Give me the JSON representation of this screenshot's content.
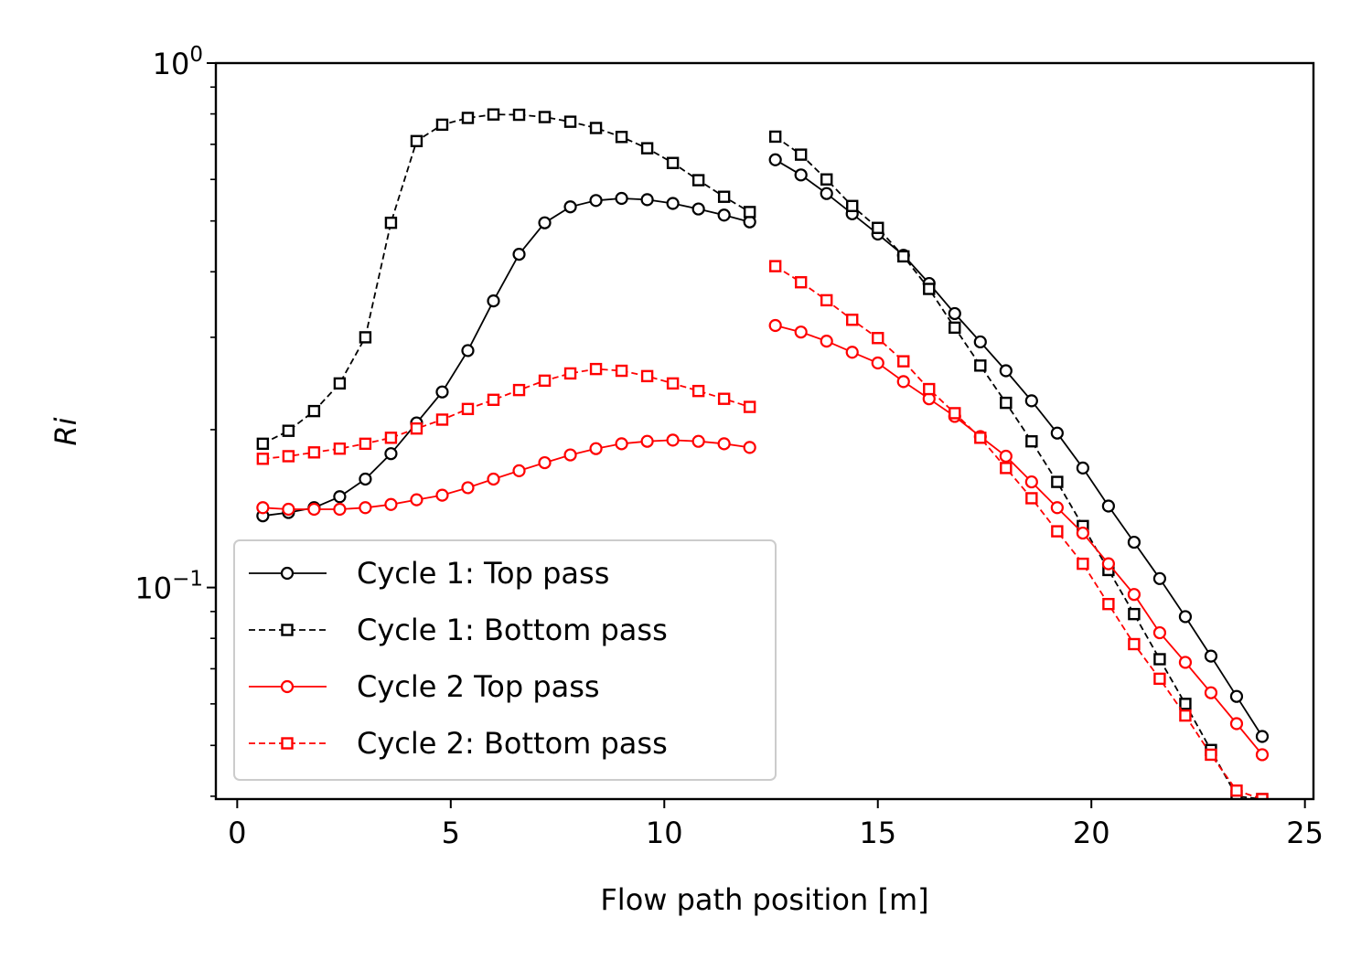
{
  "chart_data": {
    "type": "line",
    "title": "",
    "xlabel": "Flow path position [m]",
    "ylabel": "Ri",
    "yscale": "log",
    "xlim": [
      -0.5,
      25.2
    ],
    "ylim": [
      0.0395,
      1.0
    ],
    "xticks": [
      0,
      5,
      10,
      15,
      20,
      25
    ],
    "xtick_labels": [
      "0",
      "5",
      "10",
      "15",
      "20",
      "25"
    ],
    "yticks": [
      0.1,
      1.0
    ],
    "ytick_labels": [
      {
        "base": "10",
        "exp": "−1"
      },
      {
        "base": "10",
        "exp": "0"
      }
    ],
    "grid": false,
    "legend": {
      "position": "lower-left"
    },
    "segments": [
      {
        "name": "first",
        "x": [
          0.6,
          1.2,
          1.8,
          2.4,
          3.0,
          3.6,
          4.2,
          4.8,
          5.4,
          6.0,
          6.6,
          7.2,
          7.8,
          8.4,
          9.0,
          9.6,
          10.2,
          10.8,
          11.4,
          12.0
        ]
      },
      {
        "name": "second",
        "x": [
          12.6,
          13.2,
          13.8,
          14.4,
          15.0,
          15.6,
          16.2,
          16.8,
          17.4,
          18.0,
          18.6,
          19.2,
          19.8,
          20.4,
          21.0,
          21.6,
          22.2,
          22.8,
          23.4,
          24.0
        ]
      }
    ],
    "series": [
      {
        "name": "Cycle 1: Top pass",
        "color": "#000000",
        "linestyle": "solid",
        "marker": "circle",
        "values": [
          [
            0.137,
            0.139,
            0.142,
            0.149,
            0.161,
            0.18,
            0.206,
            0.236,
            0.283,
            0.352,
            0.432,
            0.496,
            0.532,
            0.547,
            0.552,
            0.549,
            0.54,
            0.527,
            0.513,
            0.498
          ],
          [
            0.654,
            0.612,
            0.564,
            0.516,
            0.472,
            0.43,
            0.38,
            0.333,
            0.294,
            0.259,
            0.227,
            0.197,
            0.169,
            0.143,
            0.122,
            0.104,
            0.088,
            0.074,
            0.062,
            0.052
          ]
        ]
      },
      {
        "name": "Cycle 1: Bottom pass",
        "color": "#000000",
        "linestyle": "dashed",
        "marker": "square",
        "values": [
          [
            0.188,
            0.199,
            0.217,
            0.245,
            0.3,
            0.496,
            0.71,
            0.763,
            0.786,
            0.798,
            0.797,
            0.789,
            0.773,
            0.752,
            0.723,
            0.688,
            0.645,
            0.598,
            0.556,
            0.52
          ],
          [
            0.724,
            0.669,
            0.6,
            0.534,
            0.485,
            0.428,
            0.371,
            0.313,
            0.265,
            0.225,
            0.19,
            0.159,
            0.131,
            0.108,
            0.089,
            0.073,
            0.06,
            0.049,
            0.04,
            0.0395
          ]
        ]
      },
      {
        "name": "Cycle 2 Top pass",
        "color": "#ff0000",
        "linestyle": "solid",
        "marker": "circle",
        "values": [
          [
            0.142,
            0.141,
            0.141,
            0.141,
            0.142,
            0.144,
            0.147,
            0.15,
            0.155,
            0.161,
            0.167,
            0.173,
            0.179,
            0.184,
            0.188,
            0.19,
            0.191,
            0.19,
            0.188,
            0.185
          ],
          [
            0.316,
            0.307,
            0.295,
            0.281,
            0.268,
            0.247,
            0.229,
            0.212,
            0.194,
            0.178,
            0.159,
            0.142,
            0.127,
            0.111,
            0.097,
            0.082,
            0.072,
            0.063,
            0.055,
            0.048
          ]
        ]
      },
      {
        "name": "Cycle 2: Bottom pass",
        "color": "#ff0000",
        "linestyle": "dashed",
        "marker": "square",
        "values": [
          [
            0.176,
            0.178,
            0.181,
            0.184,
            0.188,
            0.193,
            0.201,
            0.209,
            0.219,
            0.228,
            0.238,
            0.248,
            0.256,
            0.261,
            0.259,
            0.253,
            0.245,
            0.237,
            0.229,
            0.221
          ],
          [
            0.41,
            0.382,
            0.353,
            0.324,
            0.299,
            0.27,
            0.239,
            0.215,
            0.193,
            0.169,
            0.148,
            0.128,
            0.111,
            0.093,
            0.078,
            0.067,
            0.057,
            0.048,
            0.041,
            0.0395
          ]
        ]
      }
    ]
  }
}
